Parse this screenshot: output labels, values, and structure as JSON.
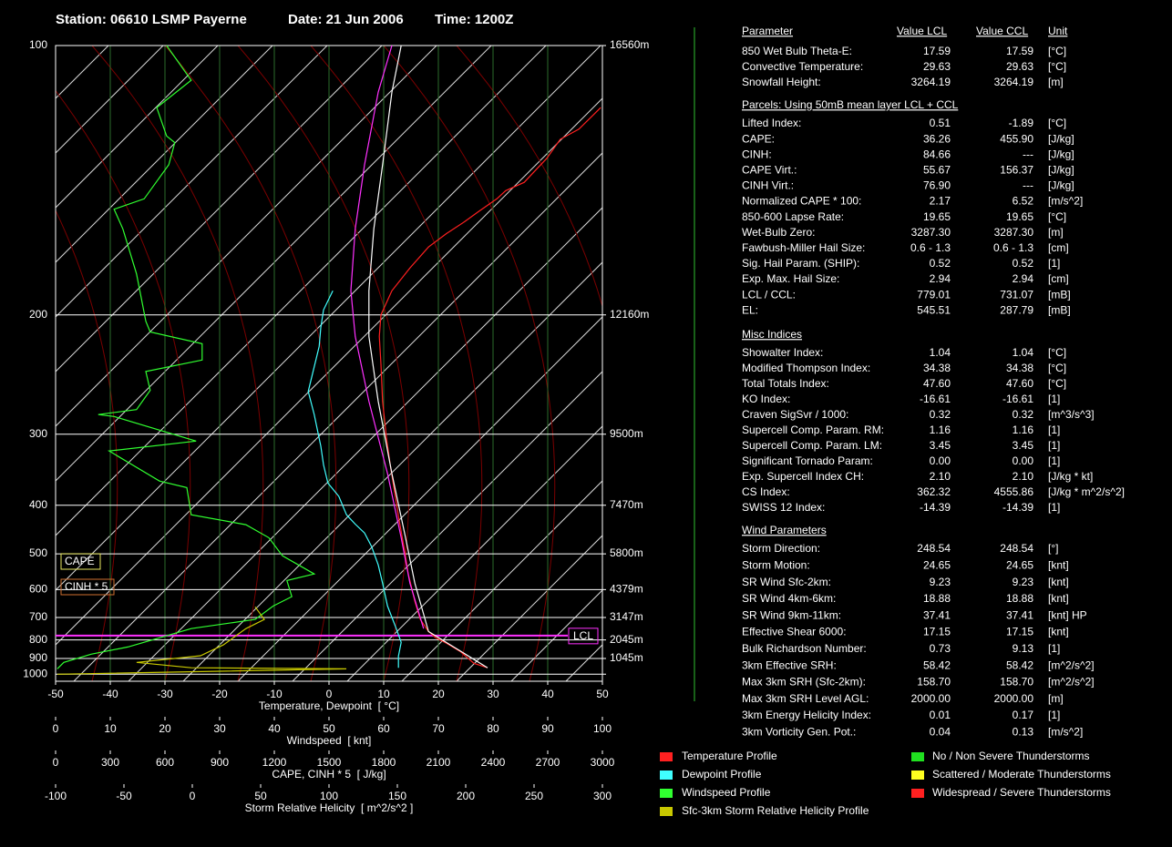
{
  "chart_data": {
    "type": "skewt",
    "station": "Station: 06610 LSMP Payerne",
    "date": "Date: 21 Jun 2006",
    "time": "Time: 1200Z",
    "ylim": [
      1050,
      100
    ],
    "yscale": "inverse-sqrt",
    "yticks": [
      100,
      200,
      300,
      400,
      500,
      600,
      700,
      800,
      900,
      1000
    ],
    "height_labels": [
      {
        "value": 100,
        "label": "16560m"
      },
      {
        "value": 200,
        "label": "12160m"
      },
      {
        "value": 300,
        "label": "9500m"
      },
      {
        "value": 400,
        "label": "7470m"
      },
      {
        "value": 500,
        "label": "5800m"
      },
      {
        "value": 600,
        "label": "4379m"
      },
      {
        "value": 700,
        "label": "3147m"
      },
      {
        "value": 800,
        "label": "2045m"
      },
      {
        "value": 900,
        "label": "1045m"
      }
    ],
    "xlim": [
      -50,
      50
    ],
    "xticks": [
      -50,
      -40,
      -30,
      -20,
      -10,
      0,
      10,
      20,
      30,
      40,
      50
    ],
    "xlabel": "Temperature, Dewpoint  [ °C]",
    "extra_axes": {
      "x2": {
        "label": "Windspeed  [ knt]",
        "xlim": [
          0,
          100
        ],
        "xticks": [
          0,
          10,
          20,
          30,
          40,
          50,
          60,
          70,
          80,
          90,
          100
        ]
      },
      "x3": {
        "label": "CAPE, CINH * 5  [ J/kg]",
        "xlim": [
          0,
          3000
        ],
        "xticks": [
          0,
          300,
          600,
          900,
          1200,
          1500,
          1800,
          2100,
          2400,
          2700,
          3000
        ]
      },
      "x4": {
        "label": "Storm Relative Helicity  [ m^2/s^2 ]",
        "xlim": [
          -100,
          300
        ],
        "xticks": [
          -100,
          -50,
          0,
          50,
          100,
          150,
          200,
          250,
          300
        ]
      }
    },
    "series": [
      {
        "name": "Temperature Profile",
        "color": "#ff2020",
        "pressure": [
          957,
          929,
          860,
          817,
          789,
          760,
          708,
          639,
          553,
          483,
          426,
          378,
          338,
          304,
          266,
          234,
          214,
          200,
          186,
          174,
          164,
          158,
          153,
          149,
          144,
          141,
          138,
          133,
          130,
          124,
          121,
          115
        ],
        "values": [
          29.0,
          26.5,
          24.0,
          21.5,
          19.5,
          18.2,
          16.7,
          15.7,
          14.5,
          13.7,
          12.8,
          12.0,
          11.2,
          10.5,
          9.8,
          9.5,
          9.2,
          9.5,
          11.5,
          14.8,
          18.2,
          21.5,
          24.8,
          27.3,
          30.7,
          32.3,
          35.7,
          38.2,
          39.8,
          42.3,
          45.7,
          49.7
        ]
      },
      {
        "name": "Dewpoint Profile",
        "color": "#40ffff",
        "pressure": [
          957,
          886,
          812,
          747,
          656,
          580,
          528,
          483,
          453,
          435,
          417,
          385,
          364,
          338,
          314,
          293,
          279,
          257,
          221,
          208,
          197,
          186
        ],
        "values": [
          12.7,
          12.7,
          13.2,
          12.3,
          10.7,
          9.8,
          9.0,
          7.8,
          6.5,
          4.8,
          3.2,
          1.8,
          -0.2,
          -1.0,
          -1.5,
          -2.2,
          -2.7,
          -3.8,
          -1.8,
          -1.5,
          -1.0,
          0.7
        ]
      },
      {
        "name": "Windspeed Profile",
        "color": "#30ff30",
        "axis": "x2",
        "pressure": [
          964,
          923,
          875,
          836,
          747,
          708,
          656,
          623,
          572,
          553,
          505,
          463,
          436,
          417,
          371,
          361,
          320,
          308,
          281,
          279,
          274,
          256,
          240,
          231,
          219,
          211,
          204,
          177,
          156,
          148,
          144,
          132,
          125,
          123,
          115,
          108,
          100
        ],
        "values": [
          0.3,
          1.5,
          6.5,
          13.2,
          24.8,
          36.5,
          39.8,
          43.2,
          42.3,
          47.3,
          41.5,
          39,
          34.8,
          24.8,
          24,
          19,
          9.8,
          25.7,
          10.7,
          7.8,
          14.8,
          17.3,
          16.5,
          26.8,
          26.8,
          17.3,
          16.5,
          14.8,
          12.3,
          10.7,
          16.2,
          20.7,
          21.8,
          20.3,
          18.5,
          24.8,
          20.3
        ]
      },
      {
        "name": "Sfc-3km Storm Relative Helicity Profile",
        "color": "#c8c800",
        "axis": "x4",
        "pressure": [
          1000,
          964,
          957,
          923,
          884,
          825,
          747,
          708,
          659
        ],
        "values": [
          -98.7,
          112.7,
          -0.7,
          -40.7,
          6,
          22.7,
          39.3,
          52.7,
          46
        ]
      },
      {
        "color": "#ffffff",
        "pressure": [
          957,
          760,
          580,
          463,
          350,
          266,
          214,
          186,
          156,
          132,
          111,
          100
        ],
        "values": [
          29.0,
          18.2,
          15.7,
          14.0,
          11.5,
          9.0,
          7.3,
          7.3,
          8.2,
          9.8,
          11.5,
          13.2
        ]
      },
      {
        "color": "#ff30ff",
        "pressure": [
          747,
          580,
          463,
          350,
          266,
          214,
          186,
          156,
          132,
          111,
          100
        ],
        "values": [
          17.3,
          14.8,
          13.2,
          10.7,
          7.3,
          4.8,
          4.0,
          4.8,
          6.5,
          9.0,
          11.5
        ]
      }
    ],
    "lcl": {
      "label": "LCL",
      "value": 779.01
    },
    "boxes": [
      {
        "label": "CAPE",
        "color": "#e8e860"
      },
      {
        "label": "CINH * 5",
        "color": "#d07030"
      }
    ]
  },
  "table": {
    "header": [
      "Parameter",
      "Value LCL",
      "Value CCL",
      "Unit"
    ],
    "sections": [
      {
        "rows": [
          [
            "850 Wet Bulb Theta-E:",
            "17.59",
            "17.59",
            "[°C]"
          ],
          [
            "Convective Temperature:",
            "29.63",
            "29.63",
            "[°C]"
          ],
          [
            "Snowfall Height:",
            "3264.19",
            "3264.19",
            "[m]"
          ]
        ],
        "colors": [
          [
            "#ff3030",
            "#ff3030"
          ],
          [
            "#ff3030",
            "#ff3030"
          ],
          [
            "#ffffff",
            "#ffffff"
          ]
        ]
      },
      {
        "title": "Parcels: Using 50mB mean layer LCL + CCL",
        "rows": [
          [
            "Lifted Index:",
            "0.51",
            "-1.89",
            "[°C]"
          ],
          [
            "CAPE:",
            "36.26",
            "455.90",
            "[J/kg]"
          ],
          [
            "CINH:",
            "84.66",
            "---",
            "[J/kg]"
          ],
          [
            "CAPE Virt.:",
            "55.67",
            "156.37",
            "[J/kg]"
          ],
          [
            "CINH Virt.:",
            "76.90",
            "---",
            "[J/kg]"
          ],
          [
            "Normalized CAPE * 100:",
            "2.17",
            "6.52",
            "[m/s^2]"
          ],
          [
            "850-600 Lapse Rate:",
            "19.65",
            "19.65",
            "[°C]"
          ],
          [
            "Wet-Bulb Zero:",
            "3287.30",
            "3287.30",
            "[m]"
          ],
          [
            "Fawbush-Miller Hail Size:",
            "0.6 - 1.3",
            "0.6 - 1.3",
            "[cm]"
          ],
          [
            "Sig. Hail Param. (SHIP):",
            "0.52",
            "0.52",
            "[1]"
          ],
          [
            "Exp. Max. Hail Size:",
            "2.94",
            "2.94",
            "[cm]"
          ],
          [
            "LCL / CCL:",
            "779.01",
            "731.07",
            "[mB]"
          ],
          [
            "EL:",
            "545.51",
            "287.79",
            "[mB]"
          ]
        ],
        "colors": [
          [
            "#ffff40",
            "#ffffff"
          ],
          [
            "#40ff40",
            "#ffff40"
          ],
          [
            "#ffff40",
            "#ffffff"
          ],
          [
            "#40ff40",
            "#40ff40"
          ],
          [
            "#ff3030",
            "#ffffff"
          ],
          [
            "#40ff40",
            "#40ff40"
          ],
          [
            "#ff3030",
            "#ff3030"
          ],
          [
            "#ff3030",
            "#ff3030"
          ],
          [
            "#ffff40",
            "#ffff40"
          ],
          [
            "#40ff40",
            "#40ff40"
          ],
          [
            "#ffff40",
            "#ffff40"
          ],
          [
            "#ffffff",
            "#ffffff"
          ],
          [
            "#40ff40",
            "#ffff40"
          ]
        ]
      },
      {
        "title": "Misc Indices",
        "rows": [
          [
            "Showalter Index:",
            "1.04",
            "1.04",
            "[°C]"
          ],
          [
            "Modified Thompson Index:",
            "34.38",
            "34.38",
            "[°C]"
          ],
          [
            "Total Totals Index:",
            "47.60",
            "47.60",
            "[°C]"
          ],
          [
            "KO Index:",
            "-16.61",
            "-16.61",
            "[1]"
          ],
          [
            "Craven SigSvr / 1000:",
            "0.32",
            "0.32",
            "[m^3/s^3]"
          ],
          [
            "Supercell Comp. Param. RM:",
            "1.16",
            "1.16",
            "[1]"
          ],
          [
            "Supercell Comp. Param. LM:",
            "3.45",
            "3.45",
            "[1]"
          ],
          [
            "Significant Tornado Param:",
            "0.00",
            "0.00",
            "[1]"
          ],
          [
            "Exp. Supercell Index CH:",
            "2.10",
            "2.10",
            "[J/kg * kt]"
          ],
          [
            "CS Index:",
            "362.32",
            "4555.86",
            "[J/kg * m^2/s^2]"
          ],
          [
            "SWISS 12 Index:",
            "-14.39",
            "-14.39",
            "[1]"
          ]
        ],
        "colors": [
          [
            "#ffff40",
            "#ffff40"
          ],
          [
            "#ffff40",
            "#ffff40"
          ],
          [
            "#ffff40",
            "#ffff40"
          ],
          [
            "#ff3030",
            "#ff3030"
          ],
          [
            "#40ff40",
            "#40ff40"
          ],
          [
            "#ffff40",
            "#ffff40"
          ],
          [
            "#ff3030",
            "#ff3030"
          ],
          [
            "#40ff40",
            "#40ff40"
          ],
          [
            "#ff3030",
            "#ff3030"
          ],
          [
            "#ffff40",
            "#ff3030"
          ],
          [
            "#ff3030",
            "#ff3030"
          ]
        ]
      },
      {
        "title": "Wind Parameters",
        "rows": [
          [
            "Storm Direction:",
            "248.54",
            "248.54",
            "[°]"
          ],
          [
            "Storm Motion:",
            "24.65",
            "24.65",
            "[knt]"
          ],
          [
            "SR Wind Sfc-2km:",
            "9.23",
            "9.23",
            "[knt]"
          ],
          [
            "SR Wind 4km-6km:",
            "18.88",
            "18.88",
            "[knt]"
          ],
          [
            "SR Wind 9km-11km:",
            "37.41",
            "37.41",
            "[knt] HP"
          ],
          [
            "Effective Shear 6000:",
            "17.15",
            "17.15",
            "[knt]"
          ],
          [
            "Bulk Richardson Number:",
            "0.73",
            "9.13",
            "[1]"
          ],
          [
            "3km Effective SRH:",
            "58.42",
            "58.42",
            "[m^2/s^2]"
          ],
          [
            "Max 3km SRH (Sfc-2km):",
            "158.70",
            "158.70",
            "[m^2/s^2]"
          ],
          [
            "Max 3km SRH Level AGL:",
            "2000.00",
            "2000.00",
            "[m]"
          ],
          [
            "3km Energy Helicity Index:",
            "0.01",
            "0.17",
            "[1]"
          ],
          [
            "3km Vorticity Gen. Pot.:",
            "0.04",
            "0.13",
            "[m/s^2]"
          ]
        ],
        "colors": [
          [
            "#ffffff",
            "#ffffff"
          ],
          [
            "#ff3030",
            "#ff3030"
          ],
          [
            "#40ff40",
            "#40ff40"
          ],
          [
            "#ff3030",
            "#ff3030"
          ],
          [
            "#ff3030",
            "#ff3030"
          ],
          [
            "#40ff40",
            "#40ff40"
          ],
          [
            "#40ff40",
            "#40ff40"
          ],
          [
            "#40ff40",
            "#40ff40"
          ],
          [
            "#ff3030",
            "#ff3030"
          ],
          [
            "#40ff40",
            "#40ff40"
          ],
          [
            "#40ff40",
            "#40ff40"
          ],
          [
            "#40ff40",
            "#40ff40"
          ]
        ]
      }
    ],
    "color_legend": [
      {
        "label": "No / Non Severe Thunderstorms",
        "color": "#20e020"
      },
      {
        "label": "Scattered / Moderate Thunderstorms",
        "color": "#ffff20"
      },
      {
        "label": "Widespread / Severe Thunderstorms",
        "color": "#ff2020"
      }
    ]
  }
}
